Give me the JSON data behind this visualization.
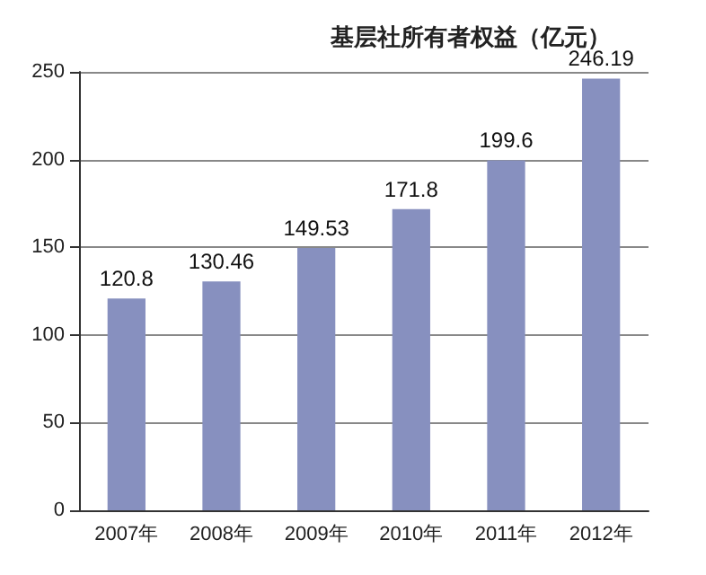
{
  "chart_data": {
    "type": "bar",
    "title": "基层社所有者权益（亿元）",
    "categories": [
      "2007年",
      "2008年",
      "2009年",
      "2010年",
      "2011年",
      "2012年"
    ],
    "values": [
      120.8,
      130.46,
      149.53,
      171.8,
      199.6,
      246.19
    ],
    "color": "#8790bf",
    "ylim": [
      0,
      250
    ],
    "yticks": [
      0,
      50,
      100,
      150,
      200,
      250
    ],
    "grid": "y",
    "data_labels": true
  }
}
